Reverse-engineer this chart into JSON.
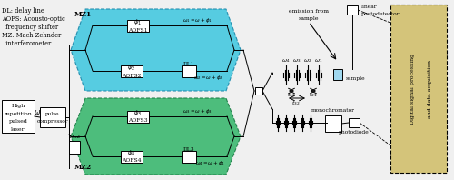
{
  "fig_width": 5.0,
  "fig_height": 1.98,
  "dpi": 100,
  "bg_color": "#f0f0f0",
  "mz1_color": "#45c8e0",
  "mz2_color": "#3bb870",
  "mz1_ec": "#1a88aa",
  "mz2_ec": "#1a7a44",
  "right_panel_color": "#d4c47a",
  "legend_lines": [
    "DL: delay line",
    "AOFS: Acousto-optic",
    "  frequency shifter",
    "MZ: Mach-Zehnder",
    "  interferometer"
  ]
}
